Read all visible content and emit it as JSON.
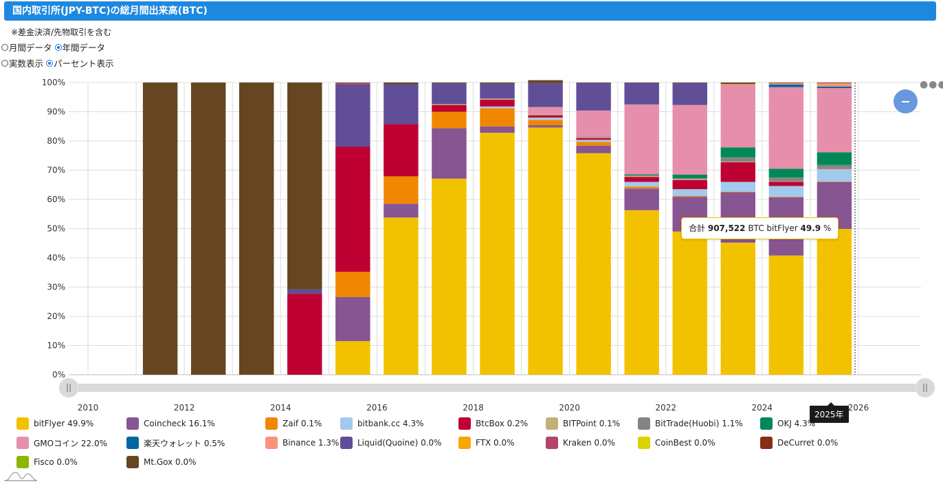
{
  "header": {
    "title": "国内取引所(JPY-BTC)の総月間出来高(BTC)"
  },
  "note": "※差金決済/先物取引を含む",
  "period_options": [
    {
      "label": "月間データ",
      "checked": false
    },
    {
      "label": "年間データ",
      "checked": true
    }
  ],
  "display_options": [
    {
      "label": "実数表示",
      "checked": false
    },
    {
      "label": "パーセント表示",
      "checked": true
    }
  ],
  "tooltip": {
    "total_label": "合計",
    "total_value": "907,522",
    "unit": "BTC",
    "series": "bitFlyer",
    "percent": "49.9",
    "percent_sign": "%"
  },
  "x_tooltip": "2025年",
  "menu_icon": "more-horizontal-icon",
  "zoom_out_icon": "minus-circle-icon",
  "chart_data": {
    "type": "bar",
    "stacked": true,
    "percent": true,
    "title": "国内取引所(JPY-BTC)の総月間出来高(BTC)",
    "xlabel": "",
    "ylabel": "",
    "ylim": [
      0,
      100
    ],
    "x_range": [
      2009.6,
      2027.3
    ],
    "x_ticks": [
      "2010",
      "2012",
      "2014",
      "2016",
      "2018",
      "2020",
      "2022",
      "2024",
      "2026"
    ],
    "y_ticks": [
      "0%",
      "10%",
      "20%",
      "30%",
      "40%",
      "50%",
      "60%",
      "70%",
      "80%",
      "90%",
      "100%"
    ],
    "grid": true,
    "legend_position": "bottom",
    "categories": [
      2011,
      2012,
      2013,
      2014,
      2015,
      2016,
      2017,
      2018,
      2019,
      2020,
      2021,
      2022,
      2023,
      2024,
      2025
    ],
    "highlighted_category": 2025,
    "series": [
      {
        "name": "bitFlyer",
        "legend": "bitFlyer 49.9%",
        "color": "#f2c200",
        "values": [
          0,
          0,
          0,
          0,
          11.5,
          53.8,
          67.1,
          82.8,
          84.6,
          75.8,
          56.3,
          49.0,
          45.2,
          40.8,
          49.9
        ]
      },
      {
        "name": "Coincheck",
        "legend": "Coincheck 16.1%",
        "color": "#875592",
        "values": [
          0,
          0,
          0,
          0,
          15.1,
          4.7,
          17.3,
          2.2,
          0.8,
          2.6,
          7.4,
          11.9,
          17.3,
          19.9,
          16.1
        ]
      },
      {
        "name": "Zaif",
        "legend": "Zaif 0.1%",
        "color": "#f18700",
        "values": [
          0,
          0,
          0,
          0,
          8.6,
          9.4,
          5.6,
          6.2,
          1.8,
          1.3,
          0.7,
          0.3,
          0.1,
          0.2,
          0.1
        ]
      },
      {
        "name": "bitbank.cc",
        "legend": "bitbank.cc 4.3%",
        "color": "#a2c9ee",
        "values": [
          0,
          0,
          0,
          0,
          0,
          0,
          0,
          0.6,
          0.8,
          0.7,
          1.6,
          2.3,
          3.4,
          3.7,
          4.3
        ]
      },
      {
        "name": "BtcBox",
        "legend": "BtcBox 0.2%",
        "color": "#be0032",
        "values": [
          0,
          0,
          0,
          27.7,
          42.8,
          17.9,
          2.3,
          2.3,
          0.8,
          0.6,
          1.7,
          3.1,
          6.7,
          1.4,
          0.2
        ]
      },
      {
        "name": "BITPoint",
        "legend": "BITPoint 0.1%",
        "color": "#c4b07b",
        "values": [
          0,
          0,
          0,
          0,
          0,
          0,
          0.3,
          0.4,
          0.3,
          0.2,
          0.3,
          0.3,
          0.2,
          0.2,
          0.1
        ]
      },
      {
        "name": "BitTrade(Huobi)",
        "legend": "BitTrade(Huobi) 1.1%",
        "color": "#848482",
        "values": [
          0,
          0,
          0,
          0,
          0,
          0,
          0,
          0,
          0,
          0.2,
          0.3,
          0.4,
          1.5,
          1.3,
          1.1
        ]
      },
      {
        "name": "OKJ",
        "legend": "OKJ 4.3%",
        "color": "#008856",
        "values": [
          0,
          0,
          0,
          0,
          0,
          0,
          0,
          0,
          0,
          0,
          0.3,
          1.2,
          3.4,
          3.0,
          4.3
        ]
      },
      {
        "name": "GMOコイン",
        "legend": "GMOコイン 22.0%",
        "color": "#e68fac",
        "values": [
          0,
          0,
          0,
          0,
          0,
          0,
          0,
          0,
          2.5,
          9.0,
          23.9,
          23.8,
          21.5,
          27.9,
          22.0
        ]
      },
      {
        "name": "楽天ウォレット",
        "legend": "楽天ウォレット 0.5%",
        "color": "#0067a5",
        "values": [
          0,
          0,
          0,
          0,
          0,
          0,
          0,
          0,
          0,
          0,
          0,
          0,
          0,
          0.9,
          0.5
        ]
      },
      {
        "name": "Binance",
        "legend": "Binance 1.3%",
        "color": "#f99379",
        "values": [
          0,
          0,
          0,
          0,
          0,
          0,
          0,
          0,
          0,
          0,
          0,
          0,
          0,
          0.6,
          1.3
        ]
      },
      {
        "name": "Liquid(Quoine)",
        "legend": "Liquid(Quoine) 0.0%",
        "color": "#604e97",
        "values": [
          0,
          0,
          0,
          1.5,
          21.3,
          13.6,
          7.1,
          5.1,
          8.2,
          9.4,
          7.3,
          7.5,
          0,
          0,
          0
        ]
      },
      {
        "name": "FTX",
        "legend": "FTX 0.0%",
        "color": "#f6a600",
        "values": [
          0,
          0,
          0,
          0,
          0,
          0,
          0,
          0,
          0,
          0,
          0,
          0,
          0.2,
          0,
          0
        ]
      },
      {
        "name": "Kraken",
        "legend": "Kraken 0.0%",
        "color": "#b3446c",
        "values": [
          0,
          0,
          0,
          0,
          0.5,
          0,
          0,
          0,
          0,
          0,
          0,
          0,
          0,
          0,
          0
        ]
      },
      {
        "name": "CoinBest",
        "legend": "CoinBest 0.0%",
        "color": "#dcd300",
        "values": [
          0,
          0,
          0,
          0,
          0,
          0,
          0,
          0,
          0,
          0,
          0,
          0,
          0,
          0,
          0
        ]
      },
      {
        "name": "DeCurret",
        "legend": "DeCurret 0.0%",
        "color": "#882d17",
        "values": [
          0,
          0,
          0,
          0,
          0,
          0,
          0,
          0,
          0,
          0,
          0,
          0,
          0,
          0,
          0
        ]
      },
      {
        "name": "Fisco",
        "legend": "Fisco 0.0%",
        "color": "#8db600",
        "values": [
          0,
          0,
          0,
          0,
          0,
          0,
          0,
          0,
          0,
          0,
          0,
          0,
          0,
          0,
          0
        ]
      },
      {
        "name": "Mt.Gox",
        "legend": "Mt.Gox 0.0%",
        "color": "#654522",
        "values": [
          100,
          100,
          100,
          70.8,
          0.2,
          0.6,
          0.3,
          0.4,
          1.0,
          0.2,
          0.2,
          0.2,
          0.5,
          0.1,
          0.1
        ]
      }
    ]
  }
}
